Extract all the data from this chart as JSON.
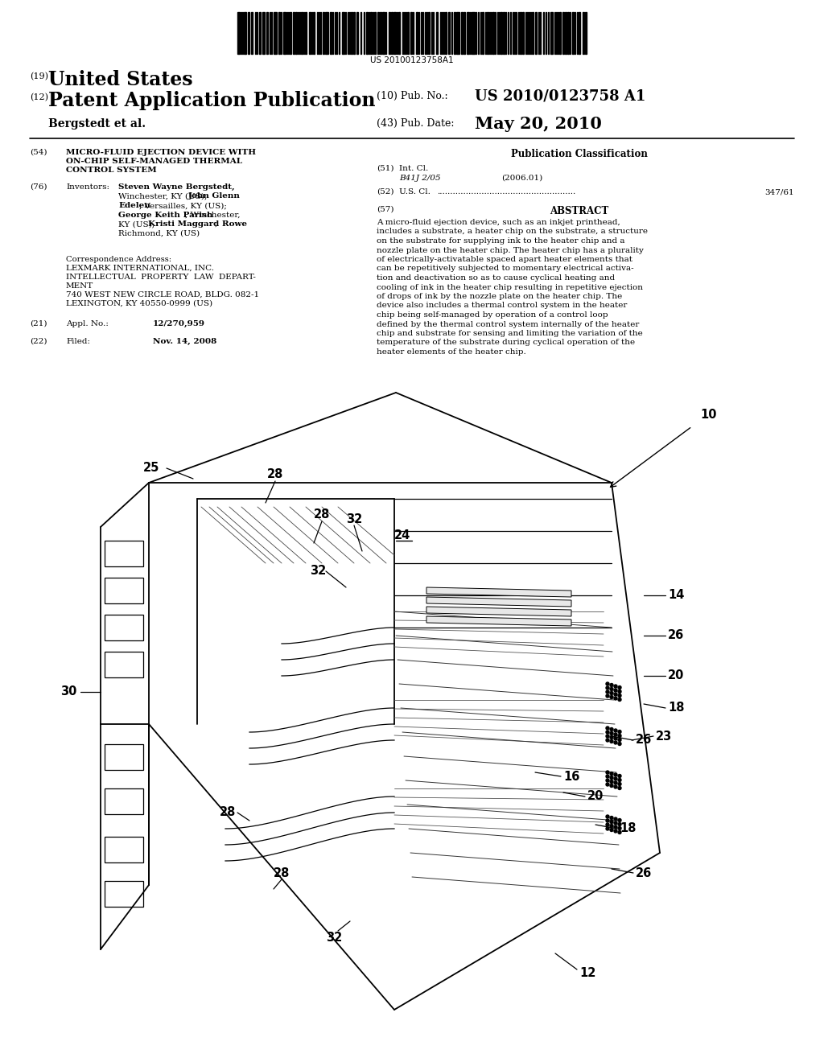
{
  "bg_color": "#ffffff",
  "barcode_text": "US 20100123758A1",
  "pub_number_label": "(19)",
  "pub_title": "United States",
  "app_label": "(12)",
  "app_title": "Patent Application Publication",
  "pub_no_label": "(10) Pub. No.:",
  "pub_no_value": "US 2010/0123758 A1",
  "inventor_label": "Bergstedt et al.",
  "pub_date_label": "(43) Pub. Date:",
  "pub_date_value": "May 20, 2010",
  "field54_label": "(54)",
  "field54_title_line1": "MICRO-FLUID EJECTION DEVICE WITH",
  "field54_title_line2": "ON-CHIP SELF-MANAGED THERMAL",
  "field54_title_line3": "CONTROL SYSTEM",
  "field76_label": "(76)",
  "field76_title": "Inventors:",
  "corr_label": "Correspondence Address:",
  "corr_line1": "LEXMARK INTERNATIONAL, INC.",
  "corr_line2": "INTELLECTUAL  PROPERTY  LAW  DEPART-",
  "corr_line3": "MENT",
  "corr_line4": "740 WEST NEW CIRCLE ROAD, BLDG. 082-1",
  "corr_line5": "LEXINGTON, KY 40550-0999 (US)",
  "field21_label": "(21)",
  "field21_title": "Appl. No.:",
  "field21_value": "12/270,959",
  "field22_label": "(22)",
  "field22_title": "Filed:",
  "field22_value": "Nov. 14, 2008",
  "pub_class_title": "Publication Classification",
  "field51_label": "(51)",
  "field51_title": "Int. Cl.",
  "field51_class": "B41J 2/05",
  "field51_year": "(2006.01)",
  "field52_label": "(52)",
  "field52_title": "U.S. Cl.",
  "field52_dots": ".....................................................",
  "field52_value": "347/61",
  "field57_label": "(57)",
  "field57_title": "ABSTRACT",
  "abstract_lines": [
    "A micro-fluid ejection device, such as an inkjet printhead,",
    "includes a substrate, a heater chip on the substrate, a structure",
    "on the substrate for supplying ink to the heater chip and a",
    "nozzle plate on the heater chip. The heater chip has a plurality",
    "of electrically-activatable spaced apart heater elements that",
    "can be repetitively subjected to momentary electrical activa-",
    "tion and deactivation so as to cause cyclical heating and",
    "cooling of ink in the heater chip resulting in repetitive ejection",
    "of drops of ink by the nozzle plate on the heater chip. The",
    "device also includes a thermal control system in the heater",
    "chip being self-managed by operation of a control loop",
    "defined by the thermal control system internally of the heater",
    "chip and substrate for sensing and limiting the variation of the",
    "temperature of the substrate during cyclical operation of the",
    "heater elements of the heater chip."
  ]
}
